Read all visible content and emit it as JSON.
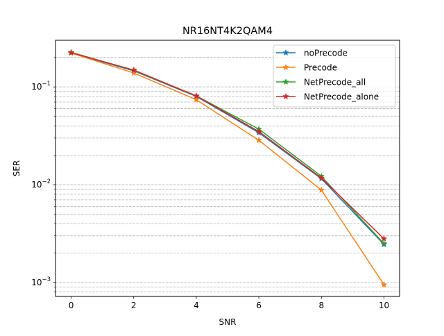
{
  "chart_data": {
    "type": "line",
    "title": "NR16NT4K2QAM4",
    "xlabel": "SNR",
    "ylabel": "SER",
    "xlim": [
      -0.5,
      10.5
    ],
    "ylim": [
      0.00072,
      0.3
    ],
    "yscale": "log",
    "x_ticks": [
      0,
      2,
      4,
      6,
      8,
      10
    ],
    "x_tick_labels": [
      "0",
      "2",
      "4",
      "6",
      "8",
      "10"
    ],
    "y_major_ticks": [
      0.1,
      0.01,
      0.001
    ],
    "y_tick_labels": [
      {
        "base": "10",
        "exp": "−1"
      },
      {
        "base": "10",
        "exp": "−2"
      },
      {
        "base": "10",
        "exp": "−3"
      }
    ],
    "grid": {
      "axis": "y",
      "which": "both",
      "style": "dashed",
      "color": "#b0b0b0"
    },
    "legend_position": "top-right",
    "marker": "star",
    "x": [
      0,
      2,
      4,
      6,
      8,
      10
    ],
    "series": [
      {
        "name": "noPrecode",
        "color": "#1f77b4",
        "values": [
          0.223,
          0.146,
          0.08,
          0.034,
          0.0115,
          0.00245
        ]
      },
      {
        "name": "Precode",
        "color": "#ff7f0e",
        "values": [
          0.222,
          0.139,
          0.074,
          0.0285,
          0.0088,
          0.00095
        ]
      },
      {
        "name": "NetPrecode_all",
        "color": "#2ca02c",
        "values": [
          0.226,
          0.148,
          0.081,
          0.037,
          0.0122,
          0.0025
        ]
      },
      {
        "name": "NetPrecode_alone",
        "color": "#d62728",
        "values": [
          0.224,
          0.149,
          0.081,
          0.035,
          0.0117,
          0.0028
        ]
      }
    ]
  }
}
